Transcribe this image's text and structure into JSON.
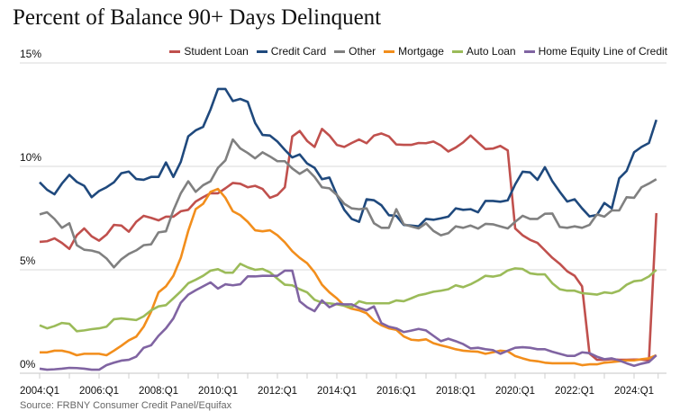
{
  "chart_data": {
    "type": "line",
    "title": "Percent of Balance 90+ Days Delinquent",
    "xlabel": "",
    "ylabel": "",
    "ylim": [
      0,
      15
    ],
    "yticks": [
      "0%",
      "5%",
      "10%",
      "15%"
    ],
    "ytick_values": [
      0,
      5,
      10,
      15
    ],
    "x_start": "2004:Q1",
    "x_end": "2024:Q4",
    "frequency": "quarterly",
    "xtick_labels": [
      "2004:Q1",
      "2006:Q1",
      "2008:Q1",
      "2010:Q1",
      "2012:Q1",
      "2014:Q1",
      "2016:Q1",
      "2018:Q1",
      "2020:Q1",
      "2022:Q1",
      "2024:Q1"
    ],
    "grid": "horizontal",
    "legend_position": "top-right",
    "series": [
      {
        "name": "Student Loan",
        "color": "#c0504d",
        "values": [
          6.35,
          6.38,
          6.52,
          6.3,
          6.01,
          6.67,
          7.0,
          6.62,
          6.41,
          6.7,
          7.17,
          7.14,
          6.84,
          7.32,
          7.61,
          7.51,
          7.39,
          7.57,
          7.57,
          7.83,
          7.9,
          8.3,
          8.51,
          8.7,
          8.7,
          8.94,
          9.2,
          9.16,
          8.99,
          9.06,
          8.91,
          8.48,
          8.62,
          8.99,
          11.45,
          11.71,
          11.23,
          10.94,
          11.81,
          11.49,
          11.04,
          10.94,
          11.13,
          11.3,
          11.12,
          11.49,
          11.59,
          11.45,
          11.06,
          11.04,
          11.04,
          11.13,
          11.12,
          11.2,
          11.01,
          10.72,
          10.91,
          11.16,
          11.49,
          11.16,
          10.84,
          10.86,
          10.99,
          10.77,
          7.0,
          6.67,
          6.45,
          6.3,
          5.94,
          5.58,
          5.29,
          4.93,
          4.71,
          4.2,
          0.95,
          0.65,
          0.65,
          0.68,
          0.65,
          0.65,
          0.66,
          0.66,
          0.62,
          7.74
        ]
      },
      {
        "name": "Credit Card",
        "color": "#1f497d",
        "values": [
          9.23,
          8.87,
          8.65,
          9.17,
          9.59,
          9.25,
          9.06,
          8.51,
          8.81,
          8.99,
          9.23,
          9.67,
          9.75,
          9.39,
          9.35,
          9.49,
          9.49,
          10.19,
          9.49,
          10.22,
          11.45,
          11.74,
          11.91,
          12.75,
          13.74,
          13.74,
          13.16,
          13.26,
          13.12,
          12.1,
          11.52,
          11.49,
          11.2,
          10.8,
          10.43,
          10.58,
          10.14,
          9.93,
          9.38,
          9.46,
          8.62,
          7.9,
          7.46,
          7.32,
          8.41,
          8.36,
          8.12,
          7.64,
          7.61,
          7.17,
          7.14,
          7.1,
          7.46,
          7.42,
          7.49,
          7.57,
          7.97,
          7.9,
          7.93,
          7.78,
          8.33,
          8.33,
          8.29,
          8.36,
          9.13,
          9.74,
          9.71,
          9.35,
          9.96,
          9.28,
          8.77,
          8.3,
          8.41,
          7.97,
          7.58,
          7.65,
          8.23,
          7.97,
          9.42,
          9.78,
          10.68,
          10.94,
          11.13,
          12.25
        ]
      },
      {
        "name": "Other",
        "color": "#808080",
        "values": [
          7.68,
          7.78,
          7.46,
          7.03,
          7.25,
          6.19,
          5.97,
          5.93,
          5.83,
          5.55,
          5.12,
          5.51,
          5.77,
          5.94,
          6.19,
          6.23,
          6.81,
          6.86,
          7.87,
          8.7,
          9.28,
          8.77,
          9.09,
          9.28,
          9.93,
          10.29,
          11.3,
          10.87,
          10.65,
          10.39,
          10.68,
          10.48,
          10.25,
          10.25,
          9.9,
          9.64,
          9.86,
          9.49,
          8.99,
          8.94,
          8.62,
          8.19,
          7.97,
          7.93,
          7.97,
          7.25,
          7.03,
          7.03,
          7.93,
          7.2,
          7.1,
          7.0,
          7.25,
          6.88,
          6.67,
          6.77,
          7.1,
          7.03,
          7.14,
          6.99,
          7.22,
          7.2,
          7.1,
          7.0,
          7.32,
          7.61,
          7.46,
          7.46,
          7.71,
          7.72,
          7.07,
          7.03,
          7.1,
          7.03,
          7.17,
          7.68,
          7.57,
          7.87,
          7.87,
          8.51,
          8.48,
          8.99,
          9.17,
          9.38
        ]
      },
      {
        "name": "Mortgage",
        "color": "#f28e1c",
        "values": [
          1.01,
          1.01,
          1.09,
          1.09,
          1.01,
          0.87,
          0.94,
          0.94,
          0.94,
          0.87,
          1.09,
          1.33,
          1.59,
          1.77,
          2.25,
          2.97,
          3.91,
          4.2,
          4.71,
          5.58,
          6.88,
          7.93,
          8.19,
          8.77,
          8.91,
          8.48,
          7.83,
          7.64,
          7.32,
          6.91,
          6.86,
          6.91,
          6.67,
          6.33,
          5.9,
          5.58,
          5.32,
          4.88,
          4.28,
          3.91,
          3.62,
          3.26,
          3.12,
          3.04,
          2.9,
          2.54,
          2.32,
          2.17,
          2.1,
          1.78,
          1.62,
          1.59,
          1.64,
          1.45,
          1.35,
          1.26,
          1.16,
          1.09,
          1.06,
          1.04,
          0.94,
          1.01,
          1.09,
          1.06,
          0.83,
          0.72,
          0.62,
          0.58,
          0.51,
          0.48,
          0.48,
          0.48,
          0.48,
          0.39,
          0.43,
          0.43,
          0.51,
          0.54,
          0.58,
          0.62,
          0.62,
          0.68,
          0.72,
          0.87
        ]
      },
      {
        "name": "Auto Loan",
        "color": "#9bbb59",
        "values": [
          2.32,
          2.17,
          2.28,
          2.43,
          2.39,
          2.03,
          2.07,
          2.13,
          2.17,
          2.25,
          2.61,
          2.65,
          2.61,
          2.57,
          2.75,
          3.04,
          3.23,
          3.29,
          3.62,
          3.96,
          4.35,
          4.52,
          4.71,
          4.96,
          5.03,
          4.86,
          4.86,
          5.29,
          5.12,
          5.0,
          5.04,
          4.88,
          4.57,
          4.28,
          4.25,
          4.06,
          3.91,
          3.55,
          3.41,
          3.38,
          3.33,
          3.26,
          3.19,
          3.48,
          3.38,
          3.38,
          3.38,
          3.38,
          3.52,
          3.48,
          3.62,
          3.77,
          3.84,
          3.94,
          3.99,
          4.06,
          4.25,
          4.16,
          4.3,
          4.49,
          4.71,
          4.67,
          4.74,
          4.97,
          5.07,
          5.04,
          4.83,
          4.78,
          4.78,
          4.35,
          4.06,
          3.99,
          3.99,
          3.87,
          3.84,
          3.8,
          3.91,
          3.87,
          3.99,
          4.28,
          4.45,
          4.49,
          4.68,
          5.0
        ]
      },
      {
        "name": "Home Equity Line of Credit",
        "color": "#8064a2",
        "values": [
          0.22,
          0.17,
          0.19,
          0.22,
          0.26,
          0.25,
          0.22,
          0.17,
          0.17,
          0.39,
          0.51,
          0.61,
          0.65,
          0.8,
          1.23,
          1.35,
          1.81,
          2.17,
          2.65,
          3.41,
          3.8,
          4.01,
          4.2,
          4.39,
          4.09,
          4.3,
          4.25,
          4.3,
          4.68,
          4.68,
          4.71,
          4.71,
          4.71,
          4.96,
          4.96,
          3.48,
          3.19,
          3.0,
          3.52,
          3.19,
          3.36,
          3.33,
          3.33,
          3.16,
          3.04,
          3.23,
          2.42,
          2.25,
          2.17,
          1.99,
          2.06,
          2.14,
          2.07,
          1.81,
          1.55,
          1.67,
          1.55,
          1.41,
          1.2,
          1.23,
          1.16,
          1.12,
          0.94,
          1.09,
          1.23,
          1.26,
          1.23,
          1.16,
          1.16,
          1.04,
          0.94,
          0.84,
          0.84,
          1.01,
          0.97,
          0.8,
          0.68,
          0.72,
          0.62,
          0.48,
          0.36,
          0.46,
          0.54,
          0.87
        ]
      }
    ]
  },
  "source": "Source: FRBNY Consumer Credit Panel/Equifax"
}
